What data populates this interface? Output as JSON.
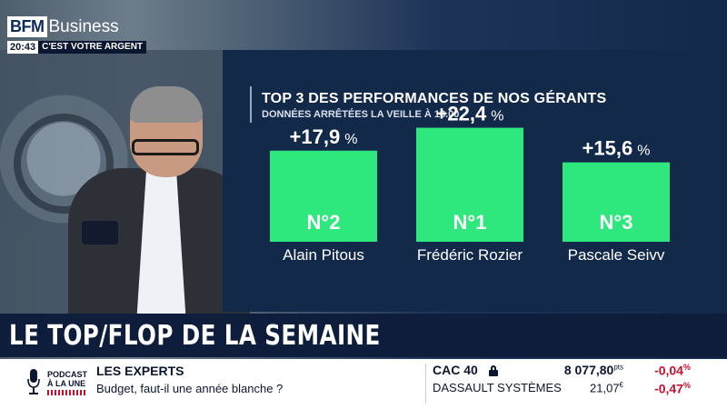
{
  "brand": {
    "name_bfm": "BFM",
    "name_business": "Business",
    "time": "20:43",
    "slogan": "C'EST VOTRE ARGENT"
  },
  "panel": {
    "title": "TOP 3 DES PERFORMANCES DE NOS GÉRANTS",
    "subtitle": "DONNÉES ARRÊTÉES LA VEILLE À 18.00",
    "bar_color": "#2ee87e"
  },
  "chart_data": {
    "type": "bar",
    "title": "TOP 3 DES PERFORMANCES DE NOS GÉRANTS",
    "subtitle": "DONNÉES ARRÊTÉES LA VEILLE À 18.00",
    "categories": [
      "Alain Pitous",
      "Frédéric Rozier",
      "Pascale Seivv"
    ],
    "values": [
      17.9,
      22.4,
      15.6
    ],
    "value_labels": [
      "+17,9",
      "+22,4",
      "+15,6"
    ],
    "value_unit": "%",
    "rank_labels": [
      "N°2",
      "N°1",
      "N°3"
    ],
    "ylim": [
      0,
      25
    ],
    "grid": false,
    "xlabel": "",
    "ylabel": ""
  },
  "headline": {
    "text": "LE TOP/FLOP DE LA SEMAINE"
  },
  "ticker": {
    "podcast_label_1": "PODCAST",
    "podcast_label_2": "À LA UNE",
    "experts_title": "LES EXPERTS",
    "experts_subtitle": "Budget, faut-il une année blanche ?",
    "markets": [
      {
        "name": "CAC 40",
        "value": "8 077,80",
        "unit": "pts",
        "change": "-0,04",
        "change_unit": "%"
      },
      {
        "name": "DASSAULT SYSTÈMES",
        "value": "21,07",
        "unit": "€",
        "change": "-0,47",
        "change_unit": "%"
      }
    ],
    "accent_red": "#c8102e"
  }
}
